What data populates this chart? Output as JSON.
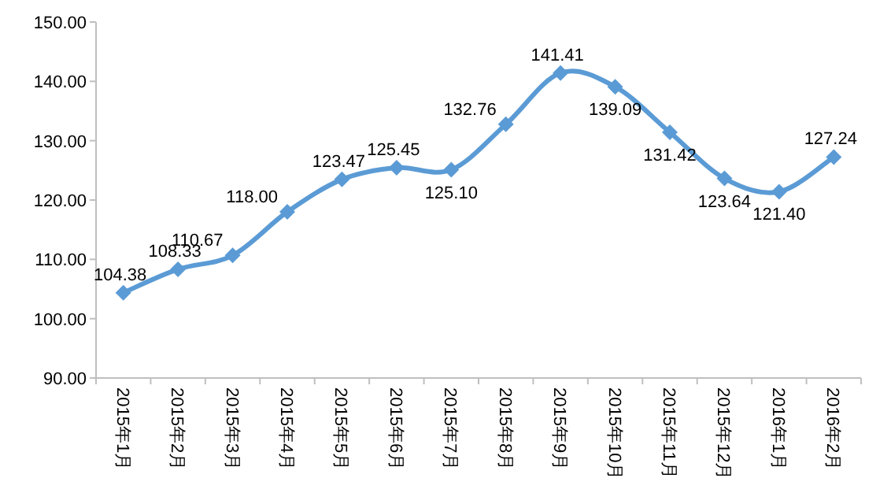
{
  "chart_data": {
    "type": "line",
    "categories": [
      "2015年1月",
      "2015年2月",
      "2015年3月",
      "2015年4月",
      "2015年5月",
      "2015年6月",
      "2015年7月",
      "2015年8月",
      "2015年9月",
      "2015年10月",
      "2015年11月",
      "2015年12月",
      "2016年1月",
      "2016年2月"
    ],
    "values": [
      104.38,
      108.33,
      110.67,
      118.0,
      123.47,
      125.45,
      125.1,
      132.76,
      141.41,
      139.09,
      131.42,
      123.64,
      121.4,
      127.24
    ],
    "value_labels": [
      "104.38",
      "108.33",
      "110.67",
      "118.00",
      "123.47",
      "125.45",
      "125.10",
      "132.76",
      "141.41",
      "139.09",
      "131.42",
      "123.64",
      "121.40",
      "127.24"
    ],
    "color": "#5b9bd5",
    "marker": "diamond",
    "ylim": [
      90,
      150
    ],
    "yticks": [
      {
        "value": 90,
        "label": "90.00"
      },
      {
        "value": 100,
        "label": "100.00"
      },
      {
        "value": 110,
        "label": "110.00"
      },
      {
        "value": 120,
        "label": "120.00"
      },
      {
        "value": 130,
        "label": "130.00"
      },
      {
        "value": 140,
        "label": "140.00"
      },
      {
        "value": 150,
        "label": "150.00"
      }
    ]
  }
}
